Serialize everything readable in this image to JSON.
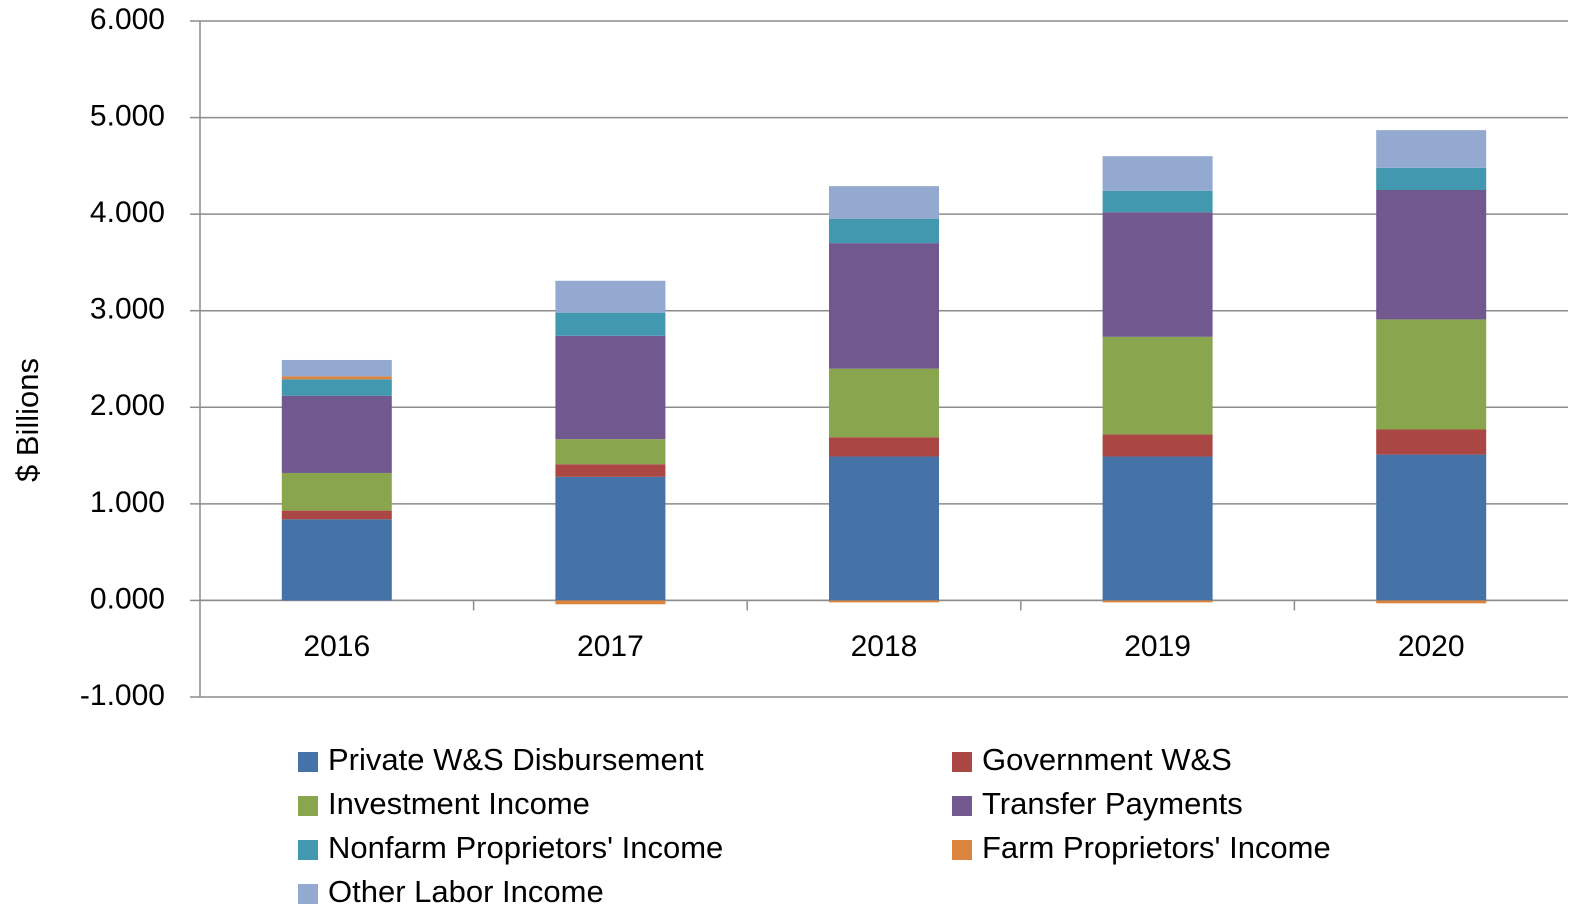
{
  "chart_data": {
    "type": "stacked_bar",
    "y_label": "$ Billions",
    "categories": [
      "2016",
      "2017",
      "2018",
      "2019",
      "2020"
    ],
    "series": [
      {
        "name": "Private W&S Disbursement",
        "color": "#4572a7",
        "values": [
          0.84,
          1.28,
          1.49,
          1.49,
          1.51
        ]
      },
      {
        "name": "Government W&S",
        "color": "#aa4643",
        "values": [
          0.09,
          0.13,
          0.2,
          0.23,
          0.26
        ]
      },
      {
        "name": "Investment Income",
        "color": "#89a54e",
        "values": [
          0.39,
          0.26,
          0.71,
          1.01,
          1.14
        ]
      },
      {
        "name": "Transfer Payments",
        "color": "#71588f",
        "values": [
          0.8,
          1.07,
          1.3,
          1.29,
          1.34
        ]
      },
      {
        "name": "Nonfarm Proprietors' Income",
        "color": "#4198af",
        "values": [
          0.17,
          0.24,
          0.25,
          0.22,
          0.23
        ]
      },
      {
        "name": "Farm Proprietors' Income",
        "color": "#db843d",
        "values": [
          0.03,
          -0.04,
          -0.02,
          -0.02,
          -0.03
        ]
      },
      {
        "name": "Other Labor Income",
        "color": "#93a9cf",
        "values": [
          0.17,
          0.33,
          0.34,
          0.36,
          0.39
        ]
      }
    ],
    "ylim": [
      -1,
      6
    ],
    "yticks": [
      {
        "value": -1,
        "label": "-1.000"
      },
      {
        "value": 0,
        "label": "0.000"
      },
      {
        "value": 1,
        "label": "1.000"
      },
      {
        "value": 2,
        "label": "2.000"
      },
      {
        "value": 3,
        "label": "3.000"
      },
      {
        "value": 4,
        "label": "4.000"
      },
      {
        "value": 5,
        "label": "5.000"
      },
      {
        "value": 6,
        "label": "6.000"
      }
    ],
    "grid": true,
    "legend": "bottom"
  }
}
